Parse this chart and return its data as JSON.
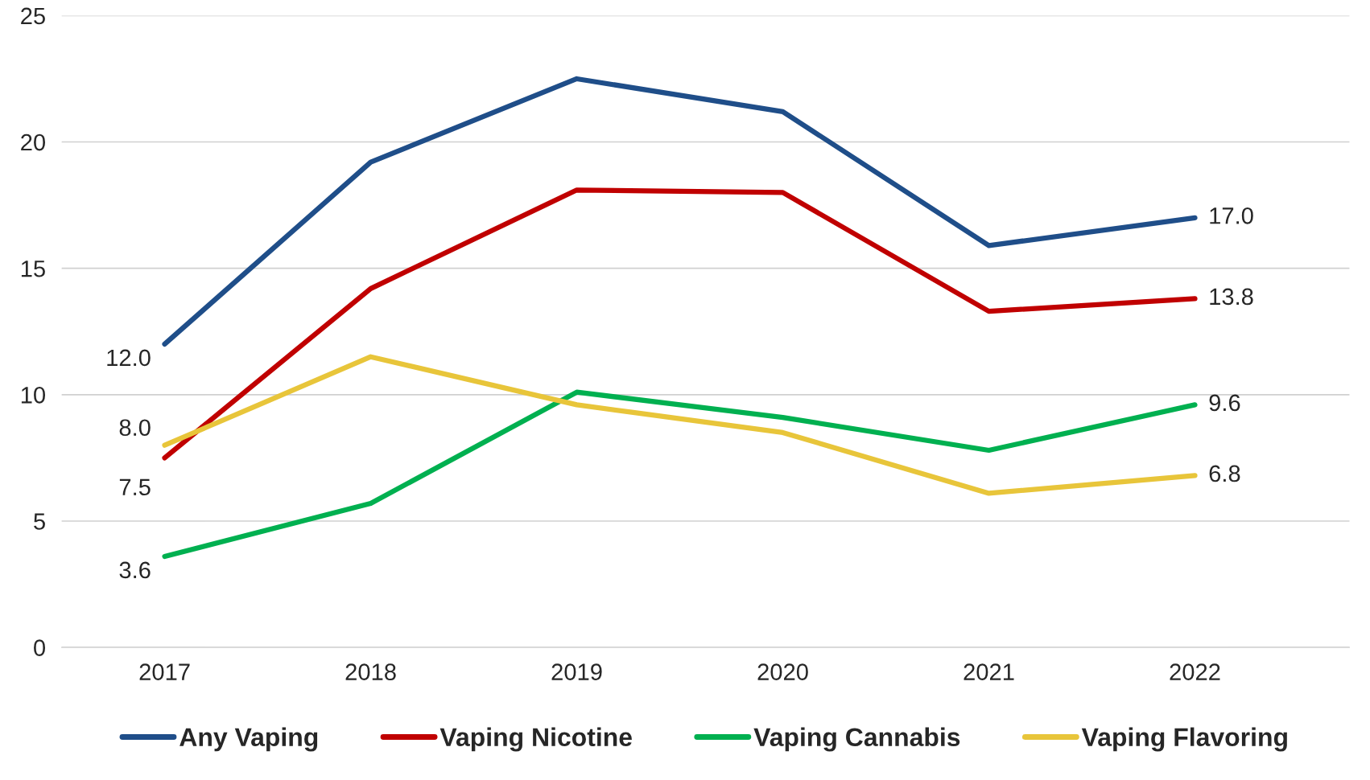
{
  "chart_data": {
    "type": "line",
    "categories": [
      "2017",
      "2018",
      "2019",
      "2020",
      "2021",
      "2022"
    ],
    "series": [
      {
        "name": "Any Vaping",
        "color": "#1f4e89",
        "values": [
          12.0,
          19.2,
          22.5,
          21.2,
          15.9,
          17.0
        ],
        "value_labels": [
          "12.0",
          null,
          null,
          null,
          null,
          "17.0"
        ]
      },
      {
        "name": "Vaping Nicotine",
        "color": "#c00000",
        "values": [
          7.5,
          14.2,
          18.1,
          18.0,
          13.3,
          13.8
        ],
        "value_labels": [
          "7.5",
          null,
          null,
          null,
          null,
          "13.8"
        ]
      },
      {
        "name": "Vaping Cannabis",
        "color": "#00b050",
        "values": [
          3.6,
          5.7,
          10.1,
          9.1,
          7.8,
          9.6
        ],
        "value_labels": [
          "3.6",
          null,
          null,
          null,
          null,
          "9.6"
        ]
      },
      {
        "name": "Vaping Flavoring",
        "color": "#e8c53a",
        "values": [
          8.0,
          11.5,
          9.6,
          8.5,
          6.1,
          6.8
        ],
        "value_labels": [
          "8.0",
          null,
          null,
          null,
          null,
          "6.8"
        ]
      }
    ],
    "ylim": [
      0,
      25
    ],
    "yticks": [
      0,
      5,
      10,
      15,
      20,
      25
    ],
    "grid": "y",
    "legend": "bottom",
    "marker": "none",
    "line_style": "solid"
  }
}
